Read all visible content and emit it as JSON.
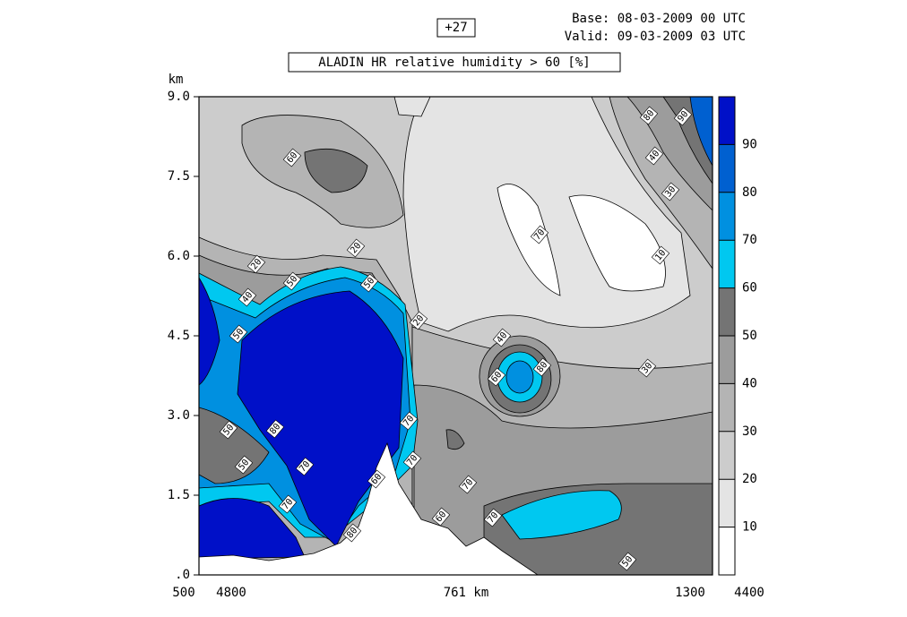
{
  "chart_data": {
    "type": "contour",
    "header": {
      "forecast_step": "+27",
      "base": "Base: 08-03-2009  00 UTC",
      "valid": "Valid: 09-03-2009  03 UTC"
    },
    "title": "ALADIN HR relative humidity > 60 [%]",
    "y_label": "km",
    "ylim": [
      0,
      9
    ],
    "yticks": [
      {
        "value": 0,
        "label": ".0"
      },
      1.5,
      {
        "value": 3,
        "label": "3.0"
      },
      4.5,
      {
        "value": 6,
        "label": "6.0"
      },
      7.5,
      {
        "value": 9,
        "label": "9.0"
      }
    ],
    "x_labels": [
      "500",
      "4800",
      "761 km",
      "1300",
      "4400"
    ],
    "colorbar": {
      "lim": [
        0,
        100
      ],
      "ticks": [
        10,
        20,
        30,
        40,
        50,
        60,
        70,
        80,
        90
      ],
      "colors": [
        "#ffffff",
        "#e4e4e4",
        "#cccccc",
        "#b4b4b4",
        "#9c9c9c",
        "#747474",
        "#00c8f0",
        "#0090e0",
        "#0060d0",
        "#0010c8"
      ]
    },
    "contour_labels": [
      60,
      20,
      20,
      50,
      40,
      50,
      20,
      50,
      40,
      60,
      80,
      70,
      10,
      80,
      90,
      40,
      30,
      30,
      50,
      80,
      50,
      70,
      70,
      80,
      60,
      70,
      70,
      70,
      60,
      70,
      50
    ]
  }
}
